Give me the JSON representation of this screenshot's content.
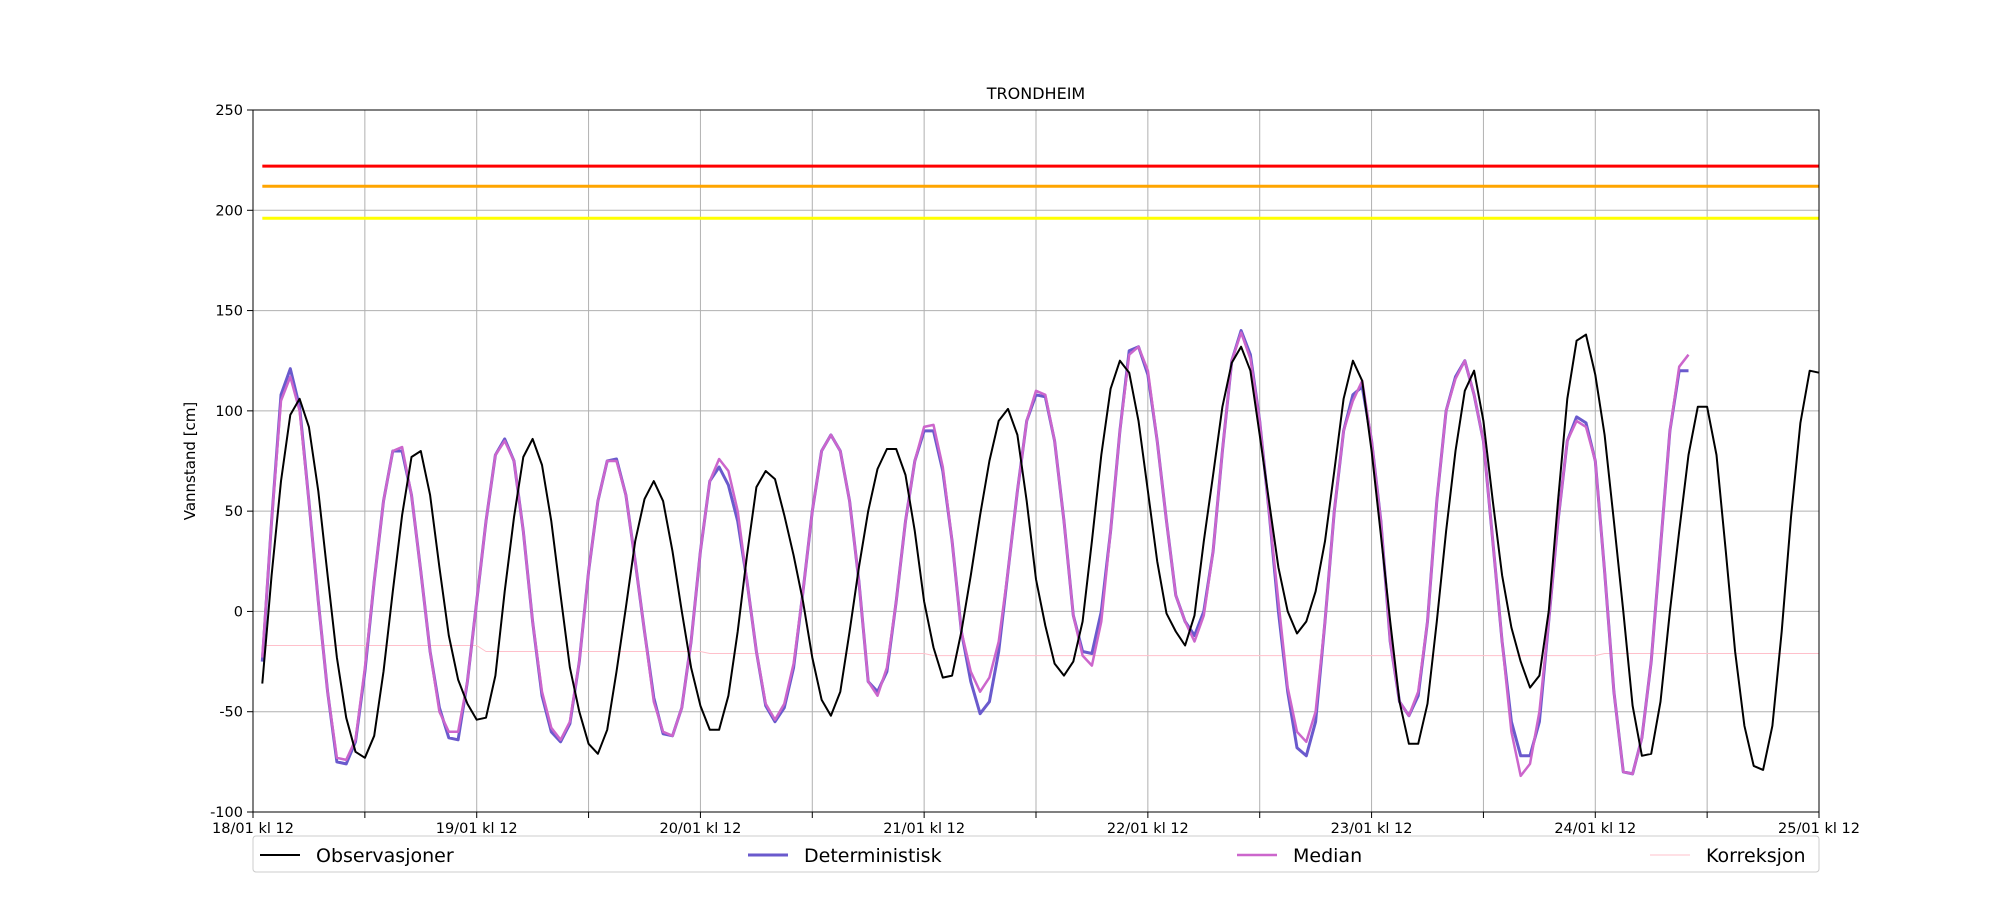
{
  "chart_data": {
    "type": "line",
    "title": "TRONDHEIM",
    "xlabel": "",
    "ylabel": "Vannstand [cm]",
    "ylim": [
      -100,
      250
    ],
    "yticks": [
      -100,
      -50,
      0,
      50,
      100,
      150,
      200,
      250
    ],
    "x_range_days": [
      0,
      7
    ],
    "xtick_labels": [
      "18/01 kl 12",
      "19/01 kl 12",
      "20/01 kl 12",
      "21/01 kl 12",
      "22/01 kl 12",
      "23/01 kl 12",
      "24/01 kl 12",
      "25/01 kl 12"
    ],
    "grid": true,
    "legend_position": "bottom",
    "thresholds": [
      {
        "value": 222,
        "color": "#ff0000"
      },
      {
        "value": 212,
        "color": "#ffa500"
      },
      {
        "value": 196,
        "color": "#ffff00"
      }
    ],
    "series": [
      {
        "name": "Observasjoner",
        "color": "#000000",
        "x_spacing_hours": 1,
        "values": [
          -36,
          18,
          65,
          98,
          106,
          92,
          60,
          18,
          -23,
          -53,
          -70,
          -73,
          -62,
          -30,
          10,
          48,
          77,
          80,
          58,
          22,
          -12,
          -34,
          -46,
          -54,
          -53,
          -32,
          10,
          47,
          77,
          86,
          73,
          45,
          8,
          -28,
          -50,
          -66,
          -71,
          -59,
          -30,
          2,
          35,
          56,
          65,
          55,
          30,
          0,
          -28,
          -47,
          -59,
          -59,
          -42,
          -10,
          28,
          62,
          70,
          66,
          48,
          28,
          5,
          -23,
          -44,
          -52,
          -40,
          -10,
          22,
          50,
          71,
          81,
          81,
          68,
          40,
          5,
          -18,
          -33,
          -32,
          -10,
          18,
          48,
          75,
          95,
          101,
          88,
          55,
          16,
          -7,
          -26,
          -32,
          -25,
          -5,
          35,
          78,
          111,
          125,
          119,
          95,
          60,
          25,
          -1,
          -10,
          -17,
          -2,
          35,
          68,
          102,
          124,
          132,
          120,
          88,
          55,
          22,
          0,
          -11,
          -5,
          10,
          35,
          70,
          106,
          125,
          115,
          80,
          38,
          -5,
          -45,
          -66,
          -66,
          -46,
          -5,
          40,
          80,
          110,
          120,
          95,
          55,
          18,
          -8,
          -25,
          -38,
          -32,
          0,
          55,
          106,
          135,
          138,
          118,
          88,
          45,
          0,
          -47,
          -72,
          -71,
          -45,
          0,
          40,
          78,
          102,
          102,
          78,
          30,
          -20,
          -57,
          -77,
          -79,
          -57,
          -10,
          47,
          94,
          120,
          119
        ]
      },
      {
        "name": "Deterministisk",
        "color": "#6a5acd",
        "x_spacing_hours": 1,
        "values": [
          -25,
          45,
          108,
          121,
          102,
          55,
          5,
          -40,
          -75,
          -76,
          -65,
          -30,
          15,
          55,
          80,
          80,
          58,
          20,
          -20,
          -48,
          -63,
          -64,
          -35,
          5,
          45,
          78,
          86,
          75,
          40,
          -5,
          -42,
          -60,
          -65,
          -56,
          -25,
          20,
          55,
          75,
          76,
          58,
          25,
          -10,
          -43,
          -61,
          -62,
          -48,
          -15,
          30,
          65,
          72,
          63,
          45,
          15,
          -20,
          -47,
          -55,
          -48,
          -28,
          10,
          50,
          80,
          88,
          80,
          55,
          15,
          -35,
          -40,
          -30,
          5,
          45,
          75,
          90,
          90,
          70,
          35,
          -10,
          -35,
          -51,
          -45,
          -20,
          20,
          60,
          95,
          108,
          107,
          85,
          45,
          -2,
          -20,
          -21,
          0,
          40,
          90,
          130,
          132,
          118,
          85,
          45,
          8,
          -5,
          -12,
          0,
          30,
          80,
          125,
          140,
          128,
          95,
          50,
          0,
          -40,
          -68,
          -72,
          -55,
          -5,
          50,
          90,
          108,
          112,
          85,
          45,
          -15,
          -45,
          -52,
          -42,
          -5,
          55,
          100,
          117,
          125,
          108,
          85,
          35,
          -15,
          -55,
          -72,
          -72,
          -55,
          -5,
          45,
          85,
          97,
          94,
          75,
          20,
          -40,
          -80,
          -81,
          -63,
          -25,
          32,
          90,
          120,
          120
        ]
      },
      {
        "name": "Median",
        "color": "#cc66cc",
        "x_spacing_hours": 1,
        "values": [
          -23,
          45,
          105,
          117,
          100,
          55,
          5,
          -40,
          -73,
          -74,
          -64,
          -28,
          15,
          55,
          80,
          82,
          58,
          20,
          -20,
          -50,
          -60,
          -60,
          -35,
          5,
          45,
          78,
          85,
          75,
          40,
          -5,
          -40,
          -58,
          -64,
          -55,
          -25,
          20,
          55,
          75,
          75,
          58,
          25,
          -10,
          -45,
          -60,
          -62,
          -48,
          -15,
          30,
          65,
          76,
          70,
          50,
          15,
          -20,
          -46,
          -54,
          -46,
          -26,
          10,
          50,
          80,
          88,
          80,
          55,
          15,
          -35,
          -42,
          -28,
          5,
          45,
          75,
          92,
          93,
          72,
          35,
          -10,
          -30,
          -40,
          -33,
          -15,
          20,
          60,
          95,
          110,
          108,
          85,
          45,
          -2,
          -22,
          -27,
          -5,
          40,
          90,
          128,
          132,
          120,
          85,
          45,
          8,
          -5,
          -15,
          -2,
          30,
          80,
          125,
          139,
          126,
          95,
          50,
          5,
          -38,
          -60,
          -65,
          -50,
          -5,
          50,
          90,
          105,
          115,
          85,
          45,
          -15,
          -45,
          -52,
          -40,
          -5,
          55,
          100,
          116,
          125,
          108,
          85,
          35,
          -15,
          -60,
          -82,
          -76,
          -50,
          -5,
          45,
          85,
          95,
          92,
          75,
          20,
          -40,
          -80,
          -81,
          -63,
          -25,
          32,
          90,
          122,
          128
        ]
      },
      {
        "name": "Korreksjon",
        "color": "#ffc0cb",
        "x_spacing_hours": 1,
        "values": [
          -17,
          -17,
          -17,
          -17,
          -17,
          -17,
          -17,
          -17,
          -17,
          -17,
          -17,
          -17,
          -17,
          -17,
          -17,
          -17,
          -17,
          -17,
          -17,
          -17,
          -17,
          -17,
          -17,
          -17,
          -20,
          -20,
          -20,
          -20,
          -20,
          -20,
          -20,
          -20,
          -20,
          -20,
          -20,
          -20,
          -20,
          -20,
          -20,
          -20,
          -20,
          -20,
          -20,
          -20,
          -20,
          -20,
          -20,
          -20,
          -21,
          -21,
          -21,
          -21,
          -21,
          -21,
          -21,
          -21,
          -21,
          -21,
          -21,
          -21,
          -21,
          -21,
          -21,
          -21,
          -21,
          -21,
          -21,
          -21,
          -21,
          -21,
          -21,
          -21,
          -22,
          -22,
          -22,
          -22,
          -22,
          -22,
          -22,
          -22,
          -22,
          -22,
          -22,
          -22,
          -22,
          -22,
          -22,
          -22,
          -22,
          -22,
          -22,
          -22,
          -22,
          -22,
          -22,
          -22,
          -22,
          -22,
          -22,
          -22,
          -22,
          -22,
          -22,
          -22,
          -22,
          -22,
          -22,
          -22,
          -22,
          -22,
          -22,
          -22,
          -22,
          -22,
          -22,
          -22,
          -22,
          -22,
          -22,
          -22,
          -22,
          -22,
          -22,
          -22,
          -22,
          -22,
          -22,
          -22,
          -22,
          -22,
          -22,
          -22,
          -22,
          -22,
          -22,
          -22,
          -22,
          -22,
          -22,
          -22,
          -22,
          -22,
          -22,
          -22,
          -21,
          -21,
          -21,
          -21,
          -21,
          -21,
          -21,
          -21,
          -21,
          -21,
          -21,
          -21,
          -21,
          -21,
          -21,
          -21,
          -21,
          -21,
          -21,
          -21,
          -21,
          -21,
          -21,
          -21
        ]
      }
    ]
  }
}
